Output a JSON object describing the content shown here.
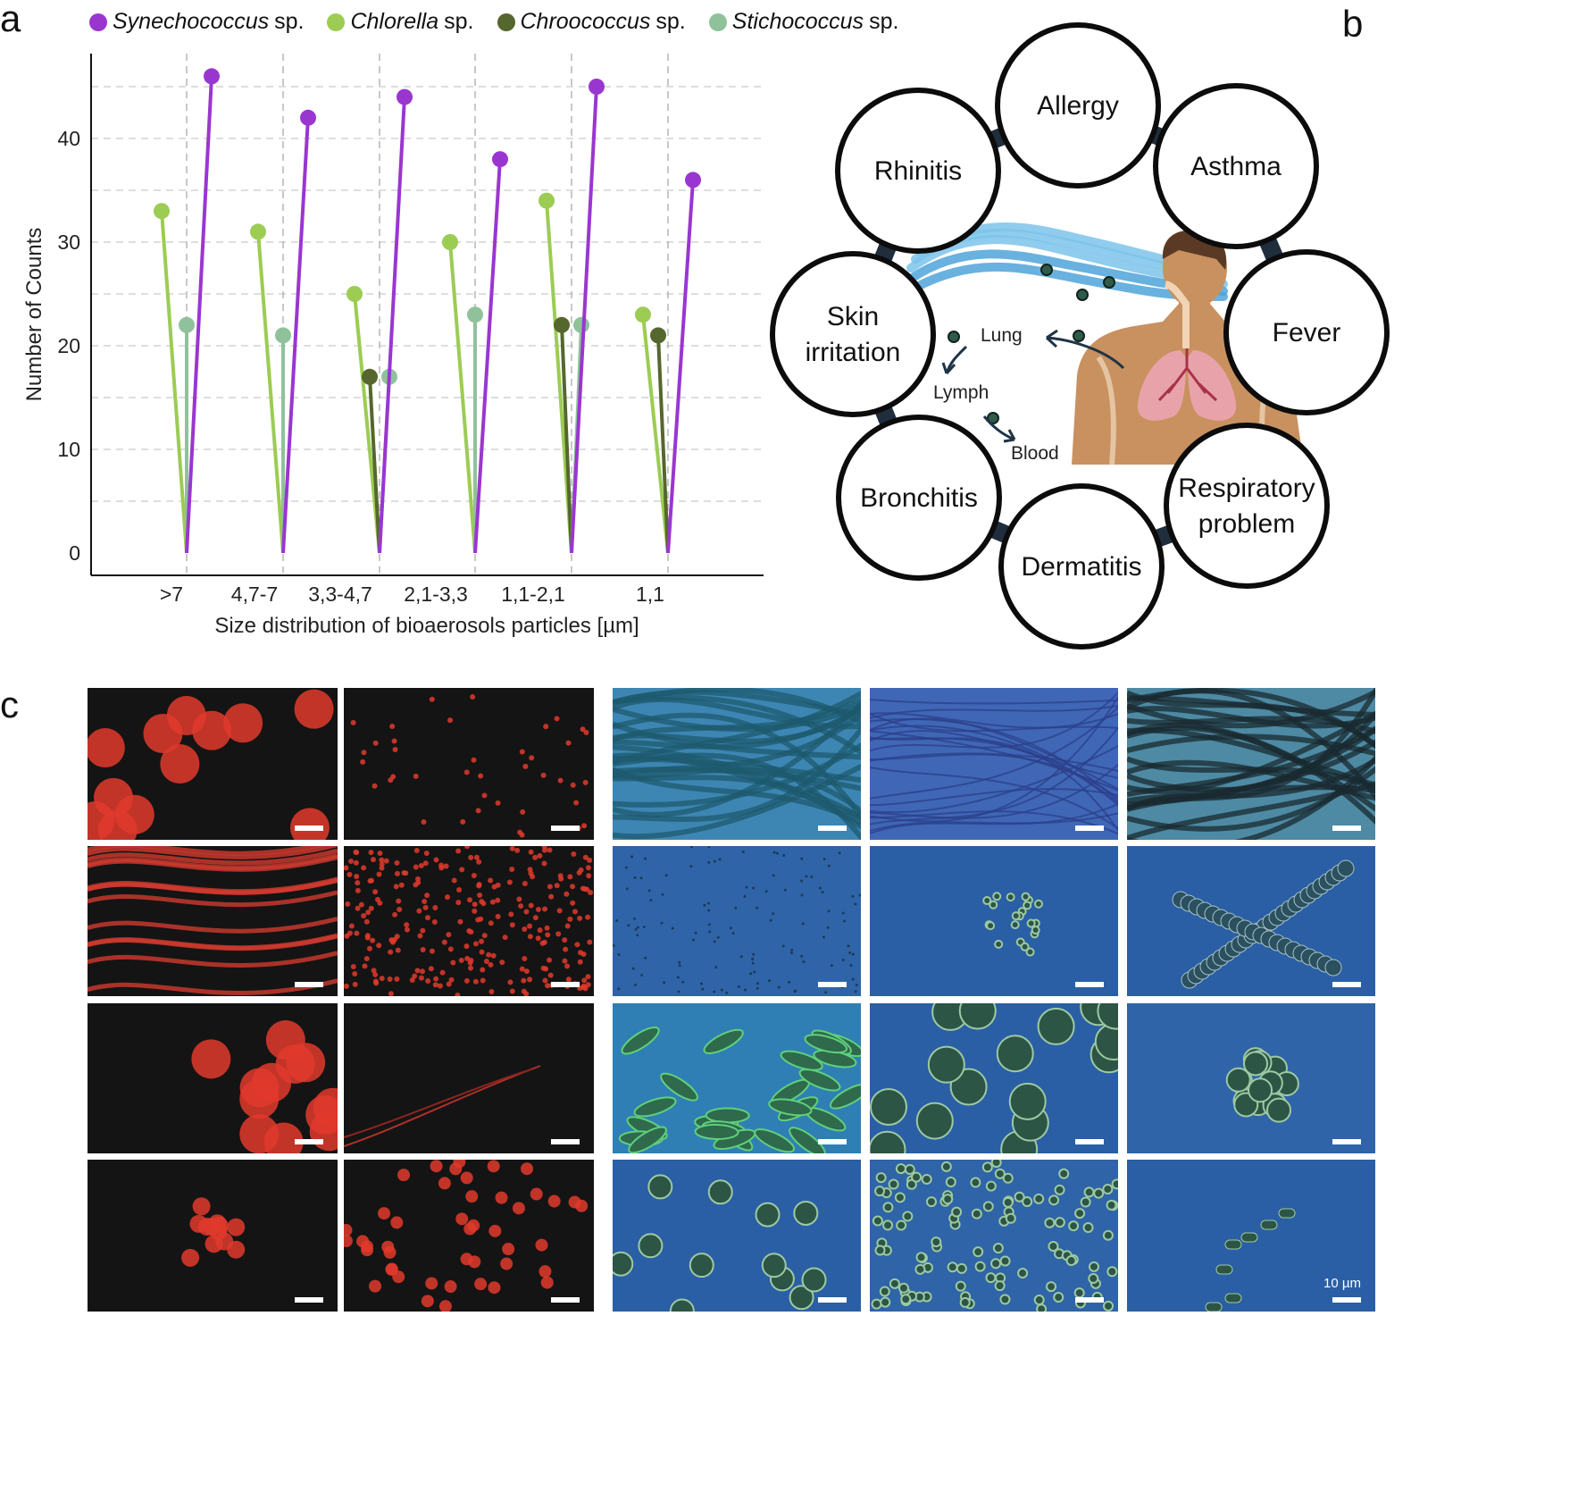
{
  "panels": {
    "a": "a",
    "b": "b",
    "c": "c"
  },
  "chart_data": {
    "type": "lollipop",
    "xlabel": "Size distribution of bioaerosols particles [µm]",
    "ylabel": "Number of Counts",
    "ylim": [
      0,
      48
    ],
    "yticks": [
      0,
      10,
      20,
      30,
      40
    ],
    "categories": [
      ">7",
      "4,7-7",
      "3,3-4,7",
      "2,1-3,3",
      "1,1-2,1",
      "1,1"
    ],
    "grid": true,
    "legend_position": "top",
    "series": [
      {
        "name": "Synechococcus",
        "suffix": "sp.",
        "color": "#9a36d0",
        "values": [
          46,
          42,
          44,
          38,
          45,
          36
        ]
      },
      {
        "name": "Chlorella",
        "suffix": "sp.",
        "color": "#9ccc54",
        "values": [
          33,
          31,
          25,
          30,
          34,
          23
        ]
      },
      {
        "name": "Chroococcus",
        "suffix": "sp.",
        "color": "#55672d",
        "values": [
          null,
          null,
          17,
          null,
          22,
          21
        ]
      },
      {
        "name": "Stichococcus",
        "suffix": "sp.",
        "color": "#8fc29b",
        "values": [
          22,
          21,
          17,
          23,
          22,
          null
        ]
      }
    ]
  },
  "diagram": {
    "effects": [
      {
        "id": "allergy",
        "text": "Allergy"
      },
      {
        "id": "asthma",
        "text": "Asthma"
      },
      {
        "id": "fever",
        "text": "Fever"
      },
      {
        "id": "respiratory",
        "text": "Respiratory problem"
      },
      {
        "id": "dermatitis",
        "text": "Dermatitis"
      },
      {
        "id": "bronchitis",
        "text": "Bronchitis"
      },
      {
        "id": "skin",
        "text": "Skin irritation"
      },
      {
        "id": "rhinitis",
        "text": "Rhinitis"
      }
    ],
    "pathway": {
      "lung": "Lung",
      "lymph": "Lymph",
      "blood": "Blood"
    }
  },
  "micrographs": {
    "scale_label": "10 µm",
    "rows": [
      {
        "fluor": [
          "colonies",
          "dots"
        ],
        "bright": [
          "filaments-dense",
          "filaments-thin",
          "filaments-dark"
        ]
      },
      {
        "fluor": [
          "filaments",
          "dots-dense"
        ],
        "bright": [
          "specks",
          "cluster-small",
          "chains"
        ]
      },
      {
        "fluor": [
          "colonies",
          "strand"
        ],
        "bright": [
          "fusiform",
          "spheres-large",
          "cluster-large"
        ]
      },
      {
        "fluor": [
          "cluster",
          "dividing"
        ],
        "bright": [
          "spheres-scattered",
          "spheres-many",
          "rods"
        ]
      }
    ]
  }
}
